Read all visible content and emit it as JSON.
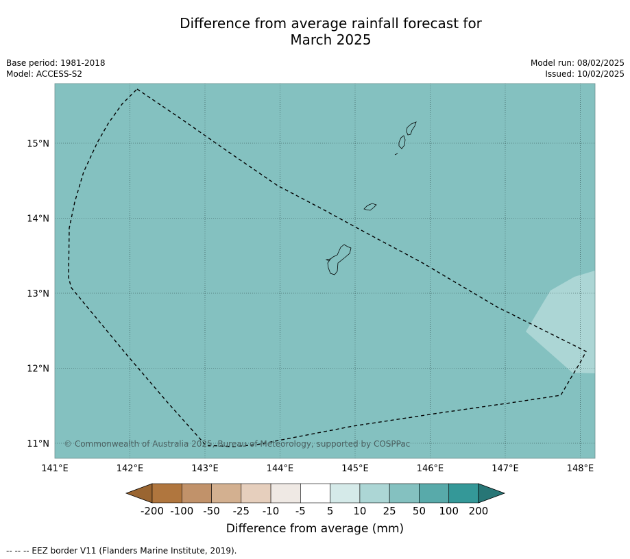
{
  "title": {
    "line1": "Difference from average rainfall forecast for",
    "line2": "March 2025"
  },
  "meta": {
    "base_period": "Base period: 1981-2018",
    "model": "Model: ACCESS-S2",
    "model_run": "Model run: 08/02/2025",
    "issued": "Issued: 10/02/2025"
  },
  "map": {
    "lat_labels": [
      "15°N",
      "14°N",
      "13°N",
      "12°N",
      "11°N"
    ],
    "lon_labels": [
      "141°E",
      "142°E",
      "143°E",
      "144°E",
      "145°E",
      "146°E",
      "147°E",
      "148°E"
    ],
    "background_color": "#84c1c0",
    "region_color": "#acd6d5",
    "copyright": "© Commonwealth of Australia 2025, Bureau of Meteorology, supported by COSPPac"
  },
  "colorbar": {
    "labels": [
      "-200",
      "-100",
      "-50",
      "-25",
      "-10",
      "-5",
      "5",
      "10",
      "25",
      "50",
      "100",
      "200"
    ],
    "colors": [
      "#9a6531",
      "#b0763e",
      "#c1926a",
      "#d3b090",
      "#e6cfbd",
      "#efe9e4",
      "#ffffff",
      "#d5eae9",
      "#acd6d5",
      "#84c1c0",
      "#58aaaa",
      "#349898",
      "#277676"
    ],
    "title": "Difference from average (mm)"
  },
  "footnote": "--  --  -- EEZ border V11 (Flanders Marine Institute, 2019)."
}
